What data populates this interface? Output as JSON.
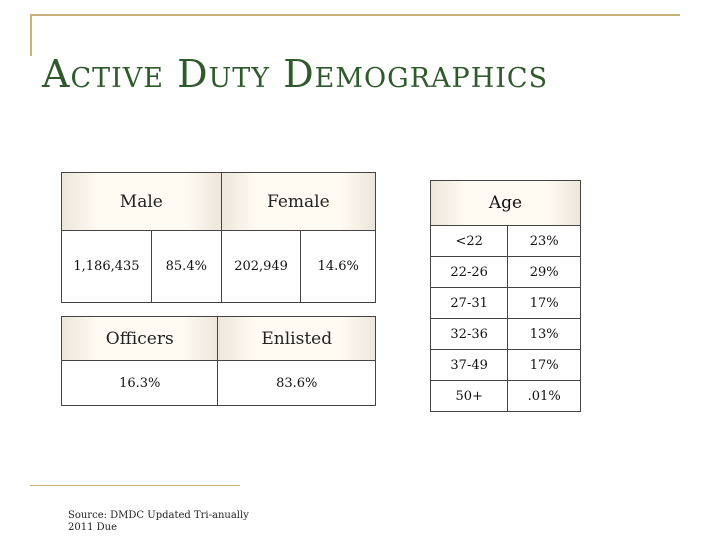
{
  "title": "Active Duty Demographics",
  "gender": {
    "male_label": "Male",
    "female_label": "Female",
    "male_count": "1,186,435",
    "male_pct": "85.4%",
    "female_count": "202,949",
    "female_pct": "14.6%"
  },
  "rank": {
    "officers_label": "Officers",
    "enlisted_label": "Enlisted",
    "officers_pct": "16.3%",
    "enlisted_pct": "83.6%"
  },
  "age": {
    "label": "Age",
    "rows": [
      {
        "range": "<22",
        "pct": "23%"
      },
      {
        "range": "22-26",
        "pct": "29%"
      },
      {
        "range": "27-31",
        "pct": "17%"
      },
      {
        "range": "32-36",
        "pct": "13%"
      },
      {
        "range": "37-49",
        "pct": "17%"
      },
      {
        "range": "50+",
        "pct": ".01%"
      }
    ]
  },
  "source": {
    "line1": "Source: DMDC Updated Tri-anually",
    "line2": "2011 Due"
  },
  "colors": {
    "title": "#2f5a2c",
    "frame": "#c9b27a"
  }
}
